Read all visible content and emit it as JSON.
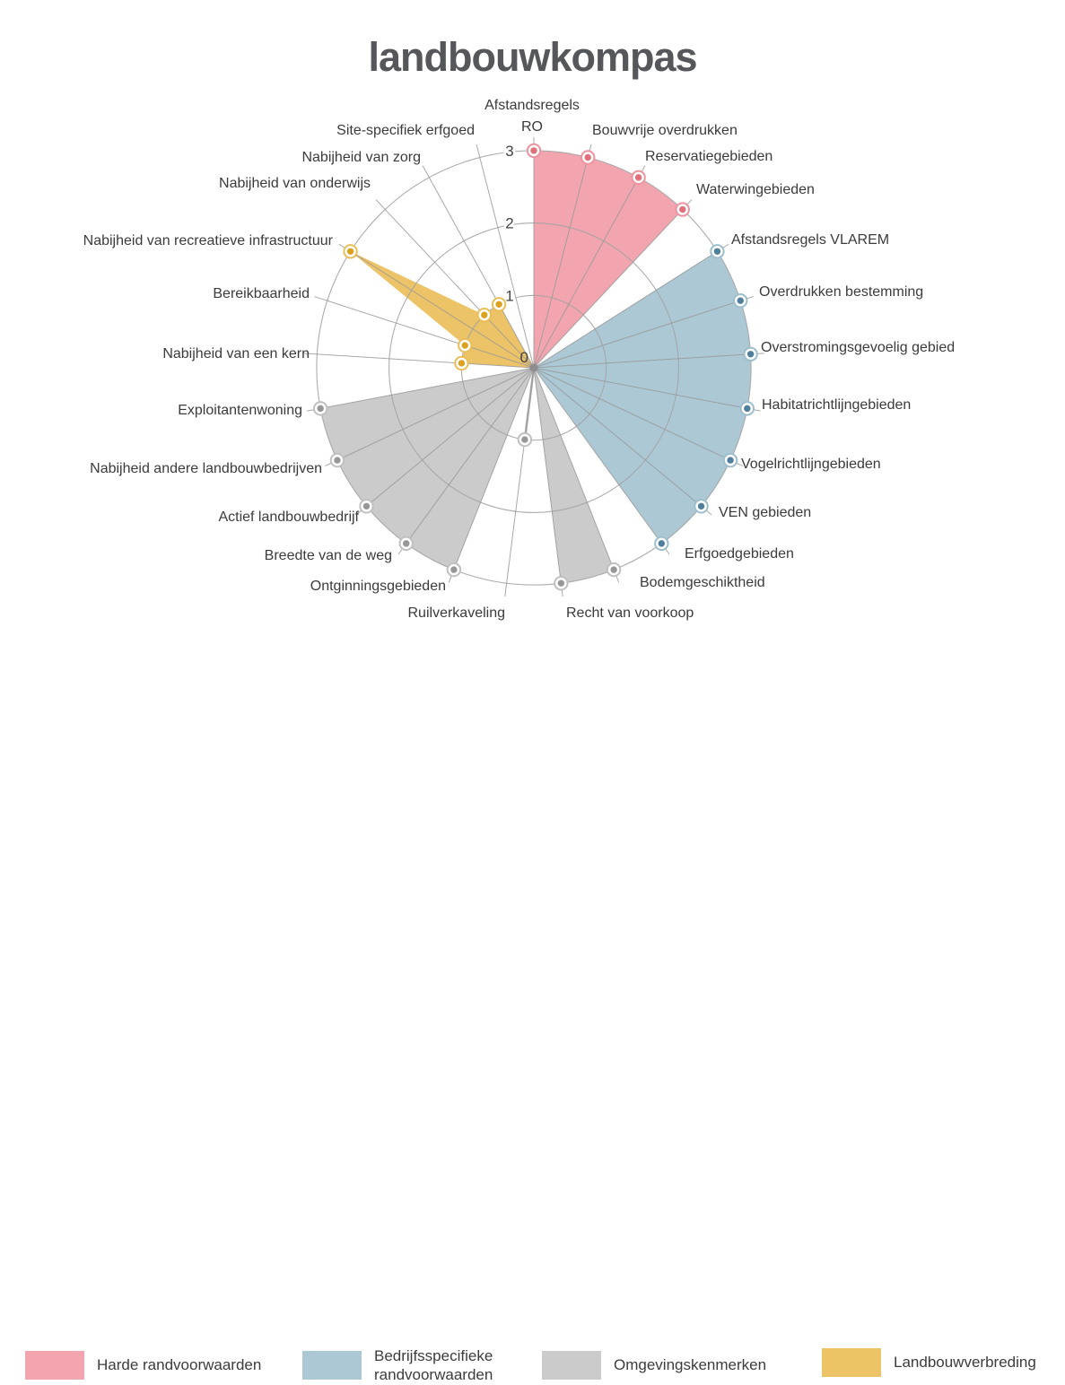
{
  "title": "landbouwkompas",
  "chart_data": {
    "type": "radar",
    "title": "landbouwkompas",
    "r_axis": {
      "min": 0,
      "max": 3,
      "ticks": [
        0,
        1,
        2,
        3
      ]
    },
    "grid": true,
    "legend_position": "bottom",
    "groups": [
      {
        "id": "hard",
        "label": "Harde randvoorwaarden",
        "fill": "#f2a5ae",
        "ring": "#ee939e",
        "dot": "#e1707b"
      },
      {
        "id": "bedrijf",
        "label": "Bedrijfsspecifieke randvoorwaarden",
        "fill": "#abc8d4",
        "ring": "#9cbecd",
        "dot": "#4f7f9d"
      },
      {
        "id": "omgeving",
        "label": "Omgevingskenmerken",
        "fill": "#cbcbcb",
        "ring": "#c0c0c0",
        "dot": "#979797"
      },
      {
        "id": "verbreding",
        "label": "Landbouwverbreding",
        "fill": "#edc367",
        "ring": "#e9be58",
        "dot": "#dca11f"
      }
    ],
    "categories": [
      {
        "label": "Afstandsregels RO",
        "group": "hard",
        "value": 3
      },
      {
        "label": "Bouwvrije overdrukken",
        "group": "hard",
        "value": 3
      },
      {
        "label": "Reservatiegebieden",
        "group": "hard",
        "value": 3
      },
      {
        "label": "Waterwingebieden",
        "group": "hard",
        "value": 3
      },
      {
        "label": "Afstandsregels VLAREM",
        "group": "bedrijf",
        "value": 3
      },
      {
        "label": "Overdrukken bestemming",
        "group": "bedrijf",
        "value": 3
      },
      {
        "label": "Overstromingsgevoelig gebied",
        "group": "bedrijf",
        "value": 3
      },
      {
        "label": "Habitatrichtlijngebieden",
        "group": "bedrijf",
        "value": 3
      },
      {
        "label": "Vogelrichtlijngebieden",
        "group": "bedrijf",
        "value": 3
      },
      {
        "label": "VEN gebieden",
        "group": "bedrijf",
        "value": 3
      },
      {
        "label": "Erfgoedgebieden",
        "group": "bedrijf",
        "value": 3
      },
      {
        "label": "Bodemgeschiktheid",
        "group": "omgeving",
        "value": 3
      },
      {
        "label": "Recht van voorkoop",
        "group": "omgeving",
        "value": 3
      },
      {
        "label": "Ruilverkaveling",
        "group": "omgeving",
        "value": 1
      },
      {
        "label": "Ontginningsgebieden",
        "group": "omgeving",
        "value": 3
      },
      {
        "label": "Breedte van de weg",
        "group": "omgeving",
        "value": 3
      },
      {
        "label": "Actief landbouwbedrijf",
        "group": "omgeving",
        "value": 3
      },
      {
        "label": "Nabijheid andere landbouwbedrijven",
        "group": "omgeving",
        "value": 3
      },
      {
        "label": "Exploitantenwoning",
        "group": "omgeving",
        "value": 3
      },
      {
        "label": "Nabijheid van een kern",
        "group": "verbreding",
        "value": 1
      },
      {
        "label": "Bereikbaarheid",
        "group": "verbreding",
        "value": 1
      },
      {
        "label": "Nabijheid van recreatieve infrastructuur",
        "group": "verbreding",
        "value": 3
      },
      {
        "label": "Nabijheid van onderwijs",
        "group": "verbreding",
        "value": 1
      },
      {
        "label": "Nabijheid van zorg",
        "group": "verbreding",
        "value": 1
      },
      {
        "label": "Site-specifiek erfgoed",
        "group": "verbreding",
        "value": 0
      }
    ]
  },
  "legend": {
    "items": [
      {
        "label": "Harde randvoorwaarden",
        "color": "#f2a5ae"
      },
      {
        "label": "Bedrijfsspecifieke randvoorwaarden",
        "color": "#abc8d4"
      },
      {
        "label": "Omgevingskenmerken",
        "color": "#cbcbcb"
      },
      {
        "label": "Landbouwverbreding",
        "color": "#edc367"
      }
    ]
  }
}
